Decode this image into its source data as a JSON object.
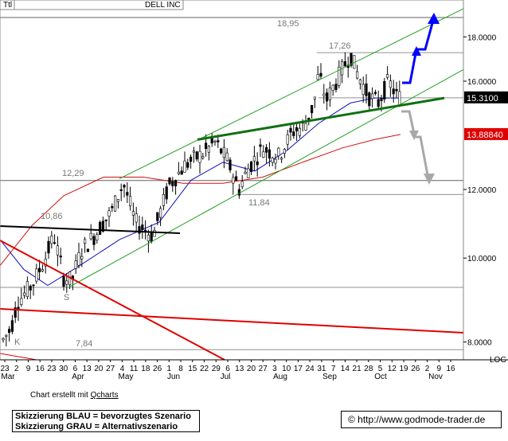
{
  "chart_data": {
    "type": "candlestick",
    "corner_label": "Ttl",
    "title": "DELL INC",
    "scale": "log",
    "scale_label": "LOG",
    "y_ticks": [
      "18.0000",
      "16.0000",
      "12.0000",
      "10.0000",
      "8.0000"
    ],
    "y_tick_values": [
      18,
      16,
      12,
      10,
      8
    ],
    "current_price": "15.3100",
    "current_price_value": 15.31,
    "ma_value": "13.88840",
    "ma_price_value": 13.888,
    "x_ticks": [
      "23",
      "2",
      "9",
      "16",
      "23",
      "30",
      "6",
      "13",
      "20",
      "27",
      "4",
      "11",
      "18",
      "26",
      "1",
      "8",
      "15",
      "22",
      "29",
      "6",
      "13",
      "20",
      "27",
      "3",
      "10",
      "17",
      "24",
      "31",
      "7",
      "14",
      "21",
      "28",
      "5",
      "12",
      "19",
      "26",
      "2",
      "9",
      "16"
    ],
    "months": [
      "Mar",
      "Apr",
      "May",
      "Jun",
      "Jul",
      "Aug",
      "Sep",
      "Oct",
      "Nov"
    ],
    "annotations": [
      {
        "text": "18,95",
        "value": 18.95
      },
      {
        "text": "17,26",
        "value": 17.26
      },
      {
        "text": "12,29",
        "value": 12.29
      },
      {
        "text": "11,84",
        "value": 11.84
      },
      {
        "text": "10,86",
        "value": 10.86
      },
      {
        "text": "7,84",
        "value": 7.84
      },
      {
        "text": "K"
      },
      {
        "text": "S"
      }
    ],
    "horizontal_levels": [
      18.95,
      17.26,
      15.31,
      12.29,
      11.84,
      9.25,
      7.84
    ],
    "colors": {
      "candles": "#000000",
      "ma_short": "#1010c0",
      "ma_long": "#d01010",
      "channel": "#20a020",
      "support": "#107010",
      "scenario_blue": "#0000ff",
      "scenario_gray": "#a8a8a8",
      "downtrend": "#e00000",
      "price_box": "#000000",
      "ma_box": "#e00000"
    }
  },
  "footer": {
    "credit_prefix": "Chart erstellt mit ",
    "credit_link": "Qcharts",
    "legend_line1": "Skizzierung BLAU = bevorzugtes Szenario",
    "legend_line2": "Skizzierung GRAU = Alternativszenario",
    "copyright": "© http://www.godmode-trader.de"
  }
}
